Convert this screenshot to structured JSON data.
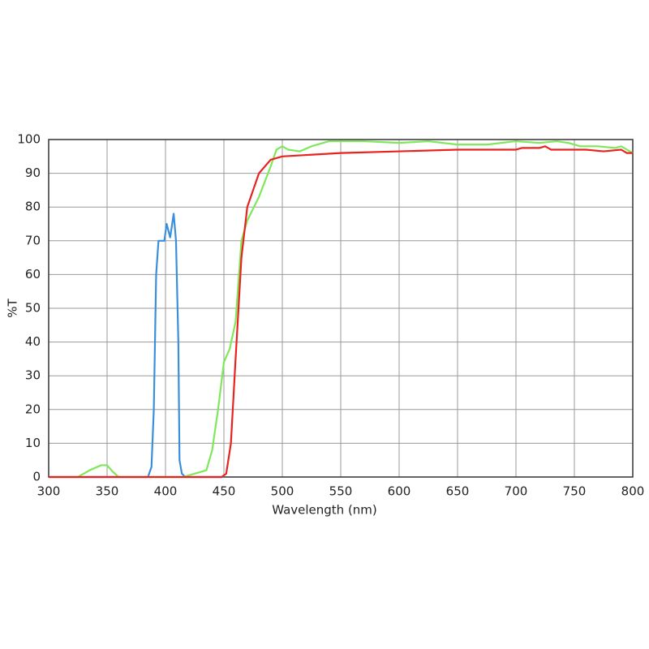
{
  "chart_data": {
    "type": "line",
    "xlabel": "Wavelength (nm)",
    "ylabel": "%T",
    "xlim": [
      300,
      800
    ],
    "xticks": [
      300,
      350,
      400,
      450,
      500,
      550,
      600,
      650,
      700,
      750,
      800
    ],
    "ylim": [
      0,
      100
    ],
    "yticks": [
      0,
      10,
      20,
      30,
      40,
      50,
      60,
      70,
      80,
      90,
      100
    ],
    "grid": true,
    "series": [
      {
        "color": "#3a8fdc",
        "x": [
          300,
          385,
          388,
          390,
          392,
          394,
          397,
          399,
          401,
          404,
          407,
          409,
          411,
          412,
          414,
          417,
          450
        ],
        "values": [
          0,
          0,
          3,
          20,
          60,
          70,
          70,
          70,
          75,
          71,
          78,
          70,
          40,
          5,
          1,
          0,
          0
        ]
      },
      {
        "color": "#7ee85a",
        "x": [
          300,
          325,
          335,
          345,
          350,
          355,
          360,
          415,
          425,
          435,
          440,
          445,
          450,
          455,
          460,
          465,
          470,
          480,
          490,
          495,
          500,
          505,
          515,
          525,
          540,
          570,
          600,
          625,
          650,
          675,
          700,
          720,
          735,
          745,
          755,
          770,
          785,
          790,
          795,
          800
        ],
        "values": [
          0,
          0,
          2,
          3.5,
          3.5,
          1.5,
          0,
          0,
          1,
          2,
          8,
          20,
          34,
          38,
          46,
          70,
          76,
          83,
          92,
          97,
          98,
          97,
          96.5,
          98,
          99.5,
          99.5,
          99,
          99.5,
          98.5,
          98.5,
          99.5,
          99,
          99.5,
          99,
          98,
          98,
          97.5,
          98,
          97,
          96
        ]
      },
      {
        "color": "#e8231f",
        "x": [
          300,
          448,
          452,
          456,
          460,
          465,
          470,
          480,
          490,
          500,
          550,
          600,
          650,
          700,
          705,
          720,
          725,
          730,
          760,
          775,
          790,
          795,
          800
        ],
        "values": [
          0,
          0,
          1,
          10,
          35,
          65,
          80,
          90,
          94,
          95,
          96,
          96.5,
          97,
          97,
          97.5,
          97.5,
          98,
          97,
          97,
          96.5,
          97,
          96,
          96
        ]
      }
    ]
  }
}
